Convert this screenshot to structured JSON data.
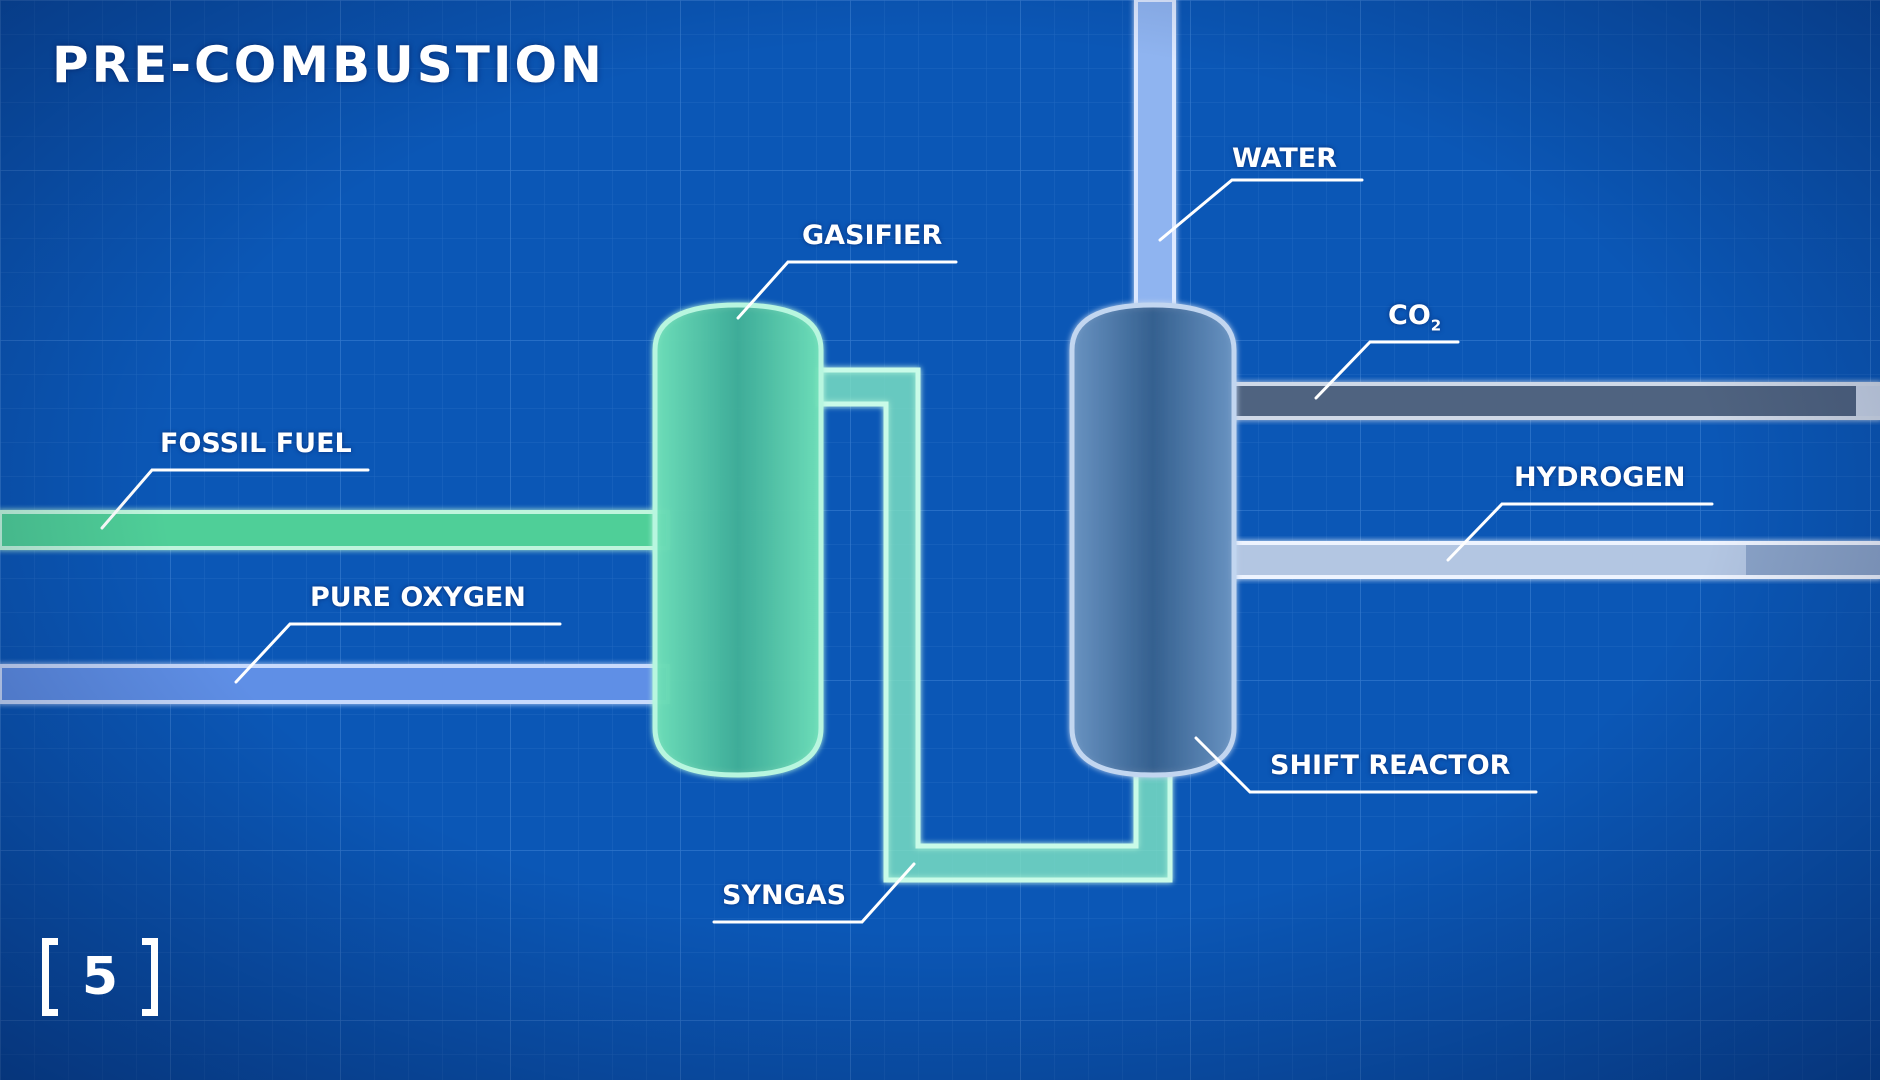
{
  "title": "PRE-COMBUSTION",
  "labels": {
    "fossil_fuel": "FOSSIL FUEL",
    "pure_oxygen": "PURE OXYGEN",
    "gasifier": "GASIFIER",
    "syngas": "SYNGAS",
    "water": "WATER",
    "co2_main": "CO",
    "co2_sub": "2",
    "hydrogen": "HYDROGEN",
    "shift_reactor": "SHIFT REACTOR"
  },
  "badge": "5",
  "colors": {
    "background": "#0b57b6",
    "grid": "#2f74c8",
    "fossil_fuel_pipe": "#5fd7a4",
    "oxygen_pipe": "#6f9bea",
    "gasifier": "#57c9a7",
    "syngas_pipe": "#9ff0d2",
    "water_pipe": "#9bbcf2",
    "shift_reactor": "#4b78a6",
    "co2_pipe": "#5c6f86",
    "hydrogen_pipe": "#b9cde6"
  }
}
